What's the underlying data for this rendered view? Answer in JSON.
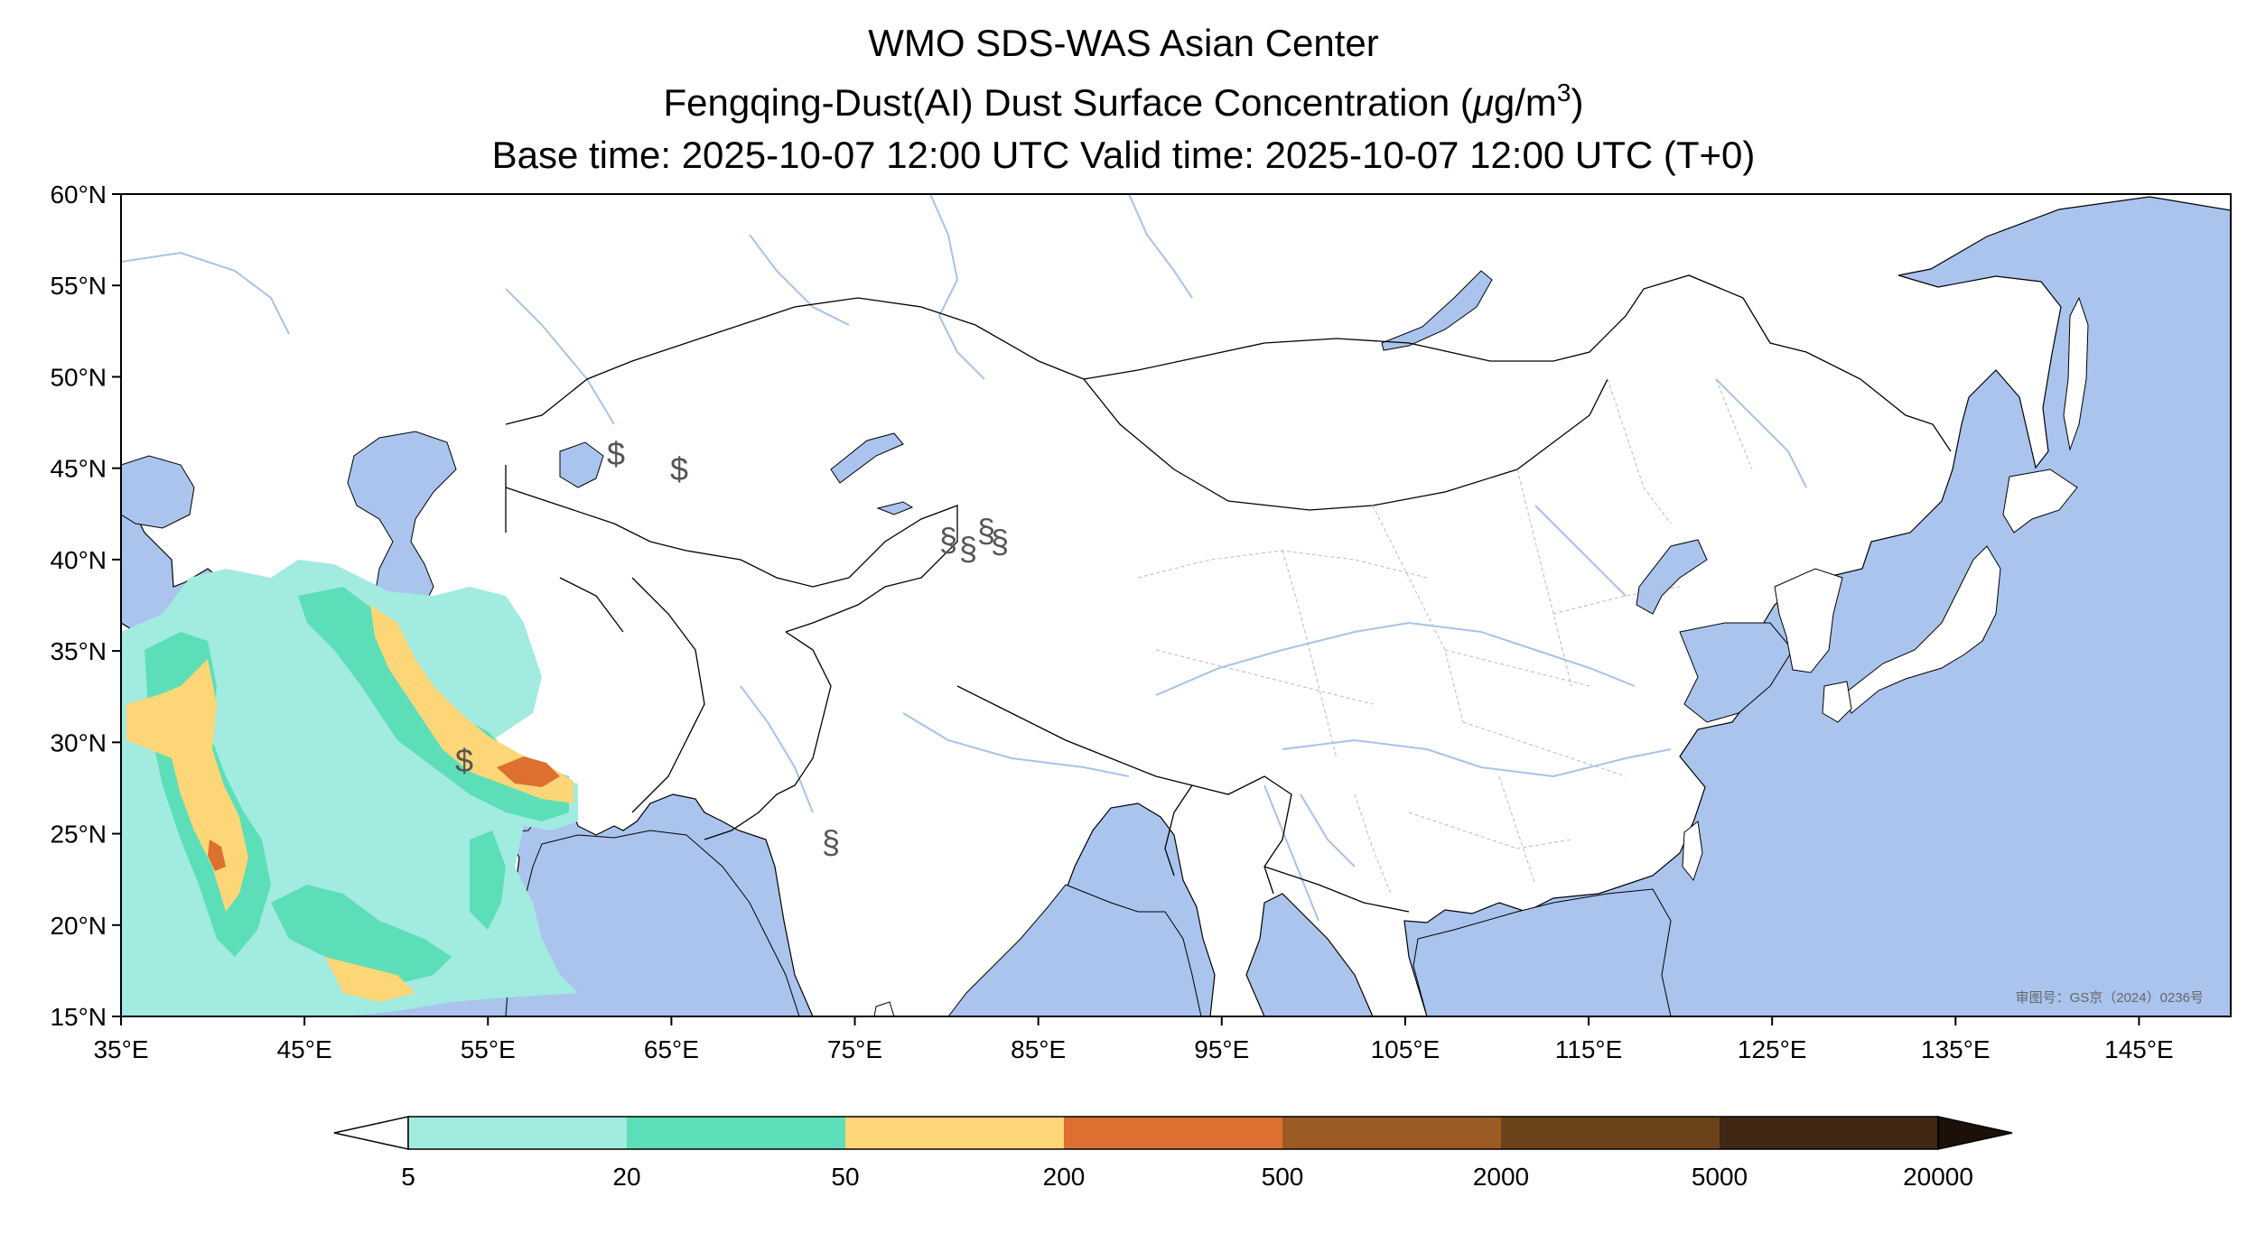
{
  "title": {
    "line1": "WMO SDS-WAS Asian Center",
    "line2_prefix": "Fengqing-Dust(AI) Dust Surface Concentration (",
    "line2_mu": "μ",
    "line2_unit": "g/m",
    "line2_sup": "3",
    "line2_suffix": ")",
    "line3": "Base time: 2025-10-07 12:00 UTC Valid time: 2025-10-07 12:00 UTC (T+0)"
  },
  "map": {
    "lon_range": [
      35,
      150
    ],
    "lat_range": [
      15,
      60
    ],
    "lat_ticks": [
      {
        "value": 60,
        "label": "60°N"
      },
      {
        "value": 55,
        "label": "55°N"
      },
      {
        "value": 50,
        "label": "50°N"
      },
      {
        "value": 45,
        "label": "45°N"
      },
      {
        "value": 40,
        "label": "40°N"
      },
      {
        "value": 35,
        "label": "35°N"
      },
      {
        "value": 30,
        "label": "30°N"
      },
      {
        "value": 25,
        "label": "25°N"
      },
      {
        "value": 20,
        "label": "20°N"
      },
      {
        "value": 15,
        "label": "15°N"
      }
    ],
    "lon_ticks": [
      {
        "value": 35,
        "label": "35°E"
      },
      {
        "value": 45,
        "label": "45°E"
      },
      {
        "value": 55,
        "label": "55°E"
      },
      {
        "value": 65,
        "label": "65°E"
      },
      {
        "value": 75,
        "label": "75°E"
      },
      {
        "value": 85,
        "label": "85°E"
      },
      {
        "value": 95,
        "label": "95°E"
      },
      {
        "value": 105,
        "label": "105°E"
      },
      {
        "value": 115,
        "label": "115°E"
      },
      {
        "value": 125,
        "label": "125°E"
      },
      {
        "value": 135,
        "label": "135°E"
      },
      {
        "value": 145,
        "label": "145°E"
      }
    ],
    "approval_label": "审图号：GS京（2024）0236号",
    "colors": {
      "sea": "#aac4ee",
      "land": "#ffffff",
      "border": "#000000",
      "river": "#a8c2ea",
      "province": "#bbbbbb"
    }
  },
  "colorbar": {
    "ticks": [
      "5",
      "20",
      "50",
      "200",
      "500",
      "2000",
      "5000",
      "20000"
    ],
    "colors": [
      "#a2ebe0",
      "#5cdfb8",
      "#fcd677",
      "#dd6f30",
      "#9c5b25",
      "#6b4219",
      "#3f2713"
    ],
    "under_color": "#ffffff",
    "over_color": "#1c1008"
  }
}
